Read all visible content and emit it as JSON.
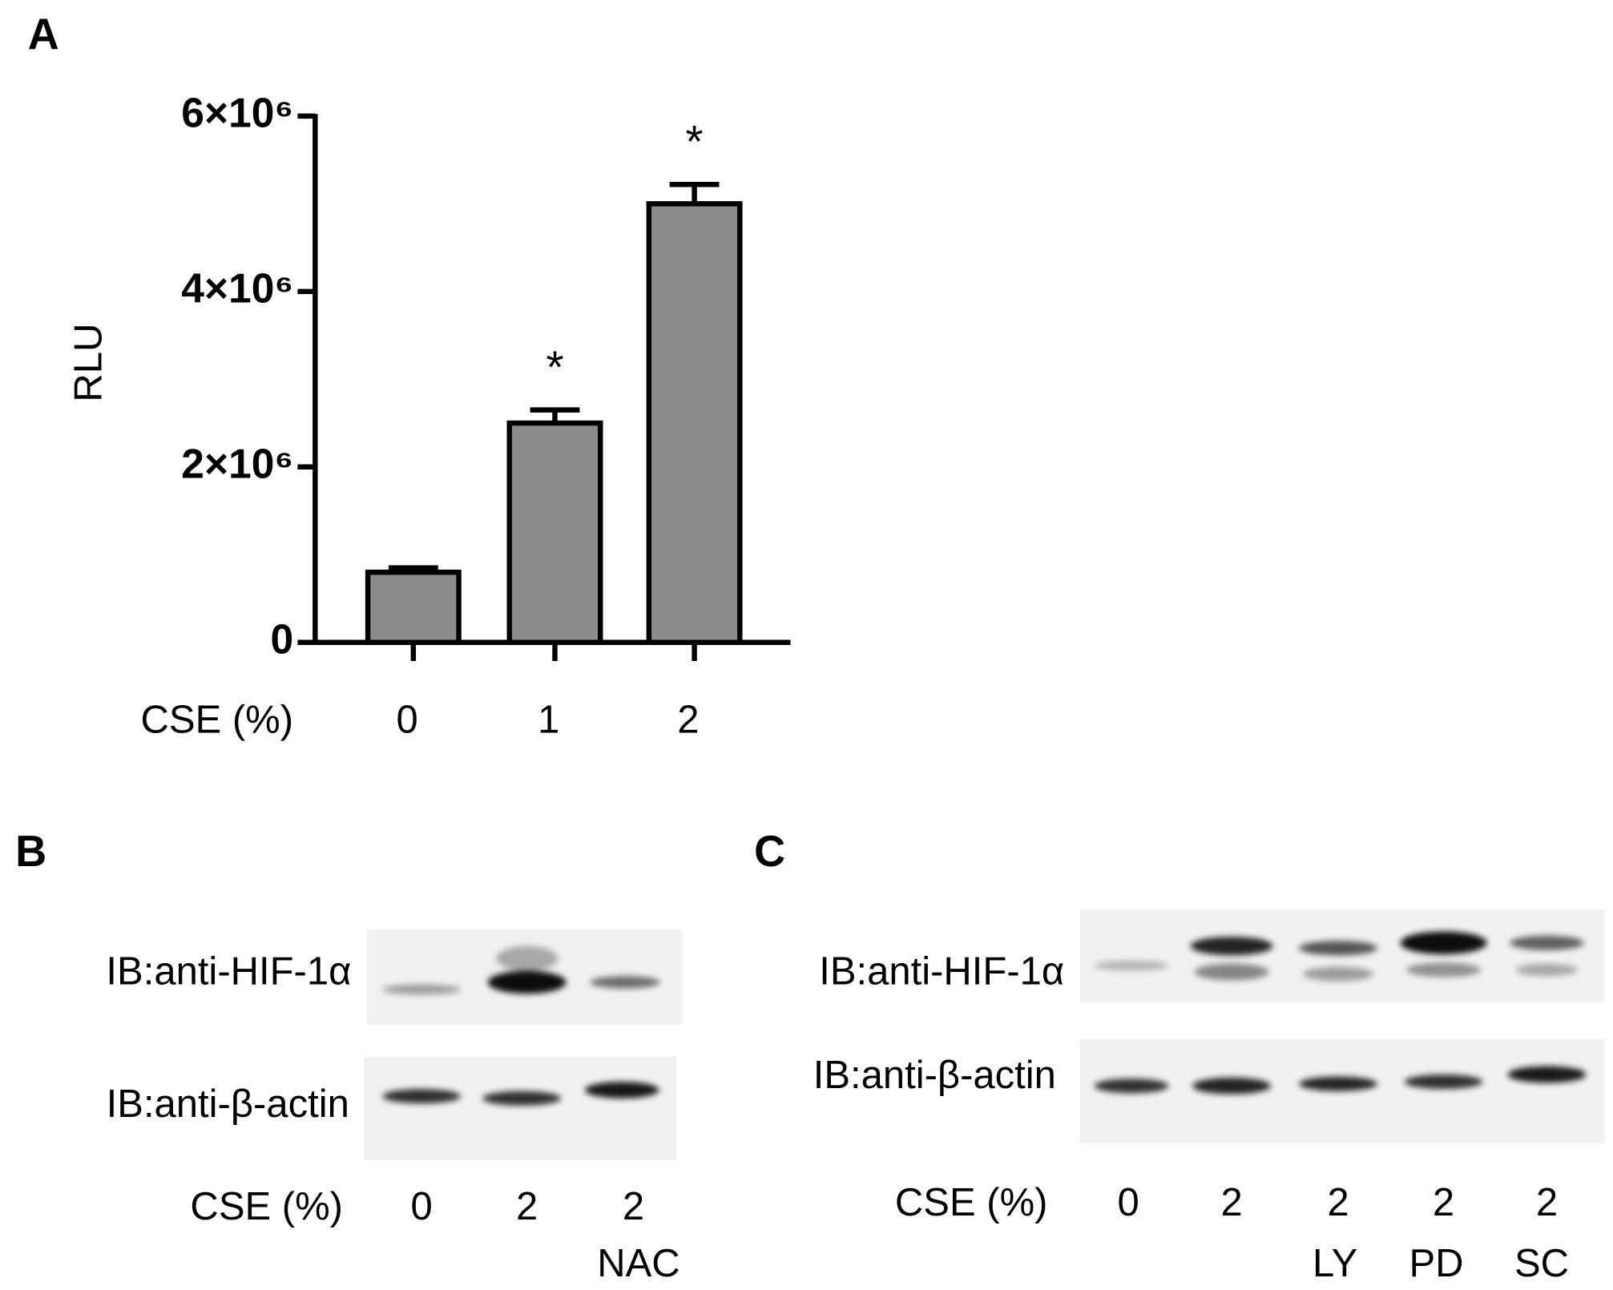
{
  "chart_data": {
    "type": "bar",
    "panel_label": "A",
    "ylabel": "RLU",
    "xlabel": "CSE (%)",
    "categories": [
      "0",
      "1",
      "2"
    ],
    "values": [
      800000,
      2500000,
      5000000
    ],
    "errors": [
      50000,
      150000,
      220000
    ],
    "significance": [
      null,
      "*",
      "*"
    ],
    "color": "#8c8c8c",
    "ylim": [
      0,
      6000000
    ],
    "yticks": [
      0,
      {
        "value": 2000000,
        "label": "2×10⁶"
      },
      {
        "value": 4000000,
        "label": "4×10⁶"
      },
      {
        "value": 6000000,
        "label": "6×10⁶"
      }
    ]
  },
  "blots": [
    {
      "panel_label": "B",
      "rows": [
        "IB:anti-HIF-1α",
        "IB:anti-β-actin"
      ],
      "lane_axis_label": "CSE (%)",
      "lanes": [
        "0",
        "2",
        "2"
      ],
      "treatments": [
        null,
        null,
        "NAC"
      ]
    },
    {
      "panel_label": "C",
      "rows": [
        "IB:anti-HIF-1α",
        "IB:anti-β-actin"
      ],
      "lane_axis_label": "CSE (%)",
      "lanes": [
        "0",
        "2",
        "2",
        "2",
        "2"
      ],
      "treatments": [
        null,
        null,
        "LY",
        "PD",
        "SC"
      ]
    }
  ]
}
